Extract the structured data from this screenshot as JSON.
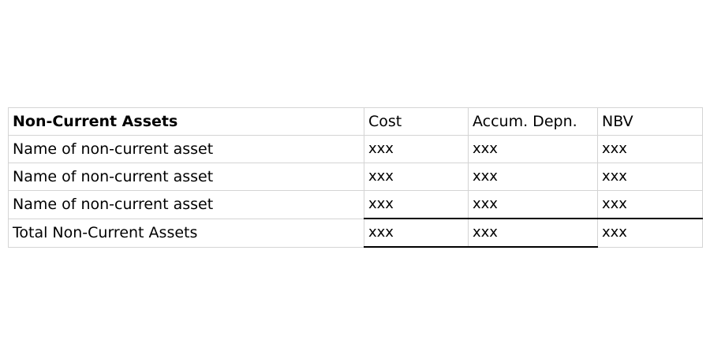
{
  "table": {
    "header": {
      "section_title": "Non-Current Assets",
      "col_cost": "Cost",
      "col_accum_depn": "Accum. Depn.",
      "col_nbv": "NBV"
    },
    "rows": [
      {
        "label": "Name of non-current asset",
        "cost": "xxx",
        "accum_depn": "xxx",
        "nbv": "xxx"
      },
      {
        "label": "Name of non-current asset",
        "cost": "xxx",
        "accum_depn": "xxx",
        "nbv": "xxx"
      },
      {
        "label": "Name of non-current asset",
        "cost": "xxx",
        "accum_depn": "xxx",
        "nbv": "xxx"
      }
    ],
    "total": {
      "label": "Total Non-Current Assets",
      "cost": "xxx",
      "accum_depn": "xxx",
      "nbv": "xxx"
    }
  },
  "colors": {
    "gridline": "#d4d4d4",
    "underline": "#000000"
  }
}
